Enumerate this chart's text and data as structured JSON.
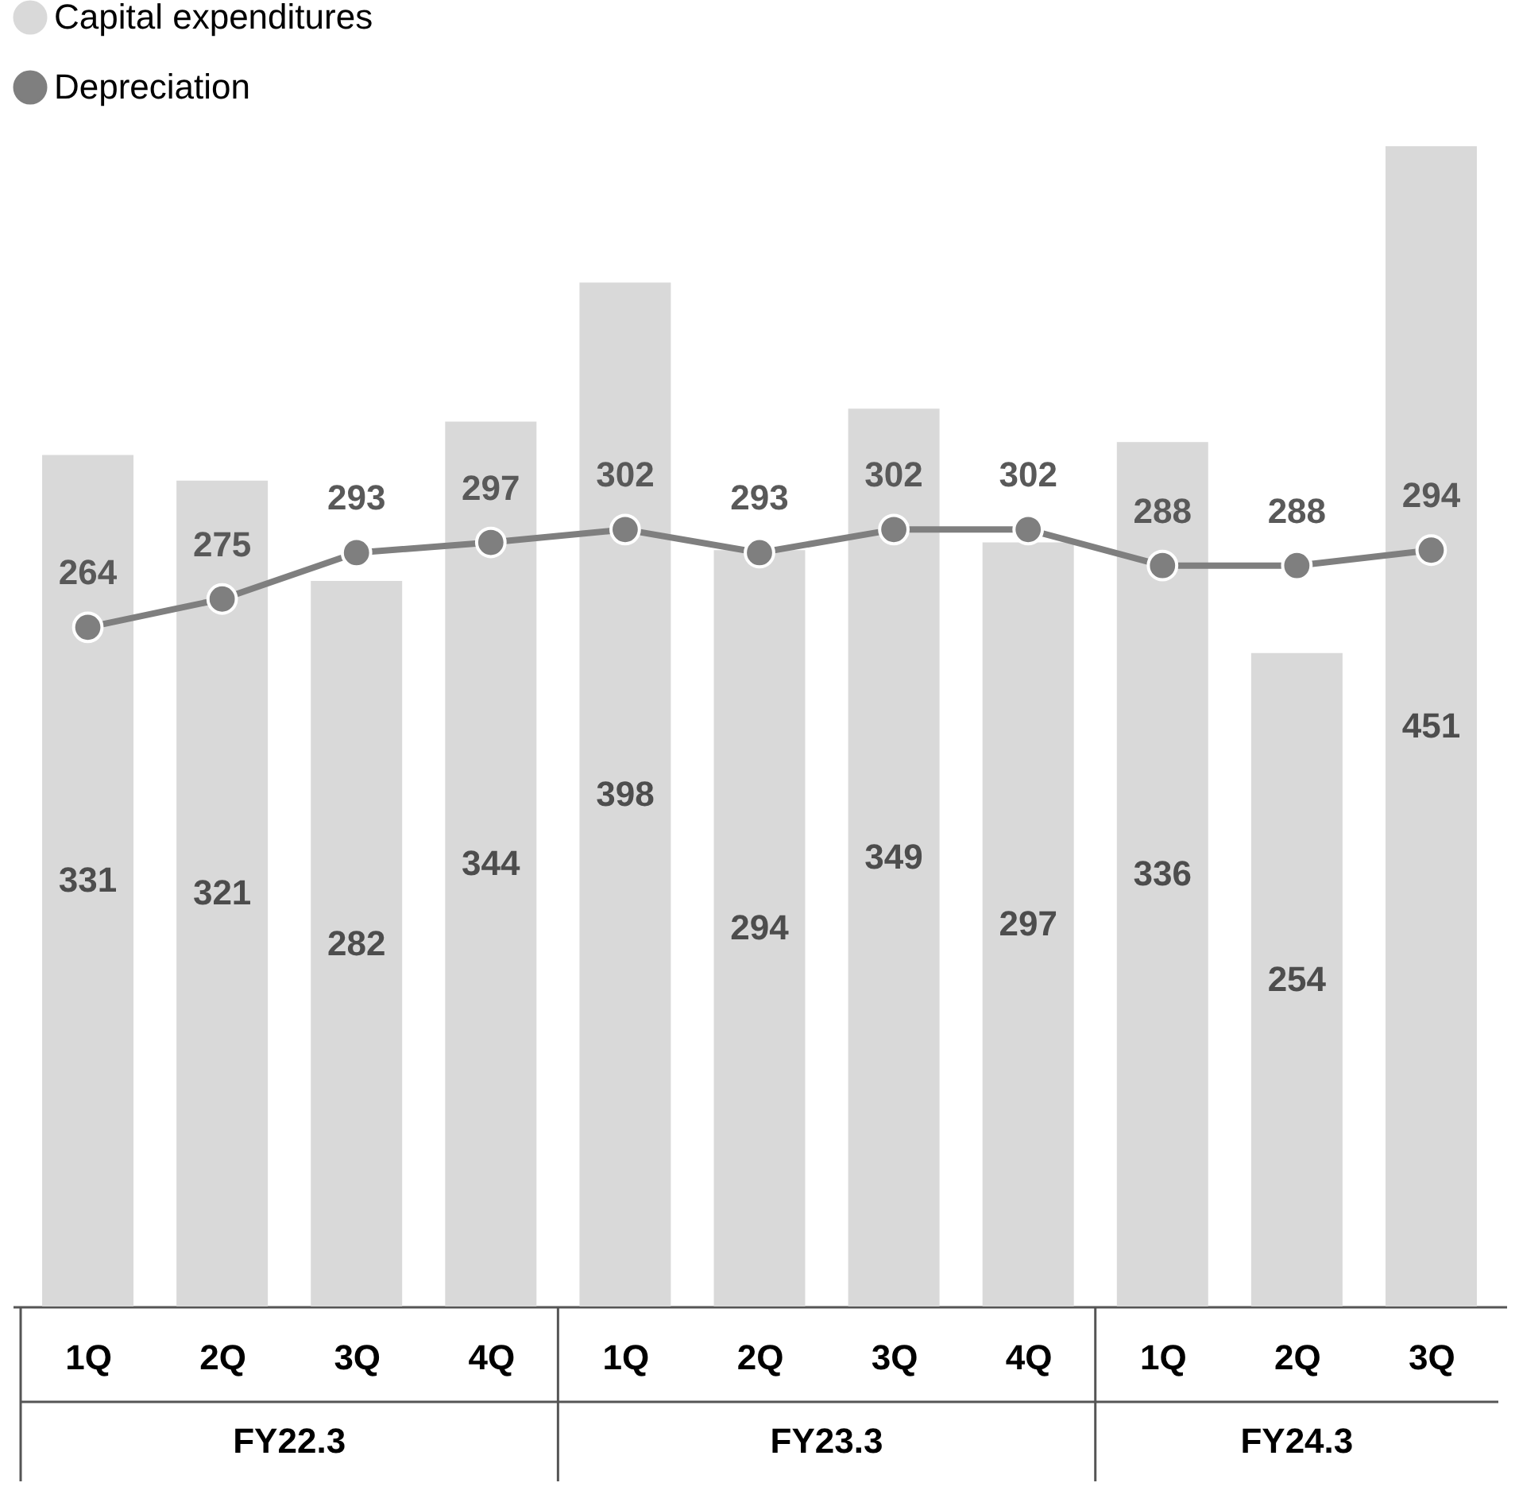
{
  "chart_data": {
    "type": "bar",
    "categories": [
      "1Q",
      "2Q",
      "3Q",
      "4Q",
      "1Q",
      "2Q",
      "3Q",
      "4Q",
      "1Q",
      "2Q",
      "3Q"
    ],
    "series": [
      {
        "name": "Capital expenditures",
        "color": "#d9d9d9",
        "values": [
          331,
          321,
          282,
          344,
          398,
          294,
          349,
          297,
          336,
          254,
          451
        ]
      },
      {
        "name": "Depreciation",
        "type": "line",
        "color": "#7f7f7f",
        "values": [
          264,
          275,
          293,
          297,
          302,
          293,
          302,
          302,
          288,
          288,
          294
        ]
      }
    ],
    "annotations": [
      "FY22.3",
      "FY23.3",
      "FY24.3"
    ],
    "data_labels": true,
    "legend": "top left",
    "marker": "circle",
    "line_style": "solid"
  }
}
